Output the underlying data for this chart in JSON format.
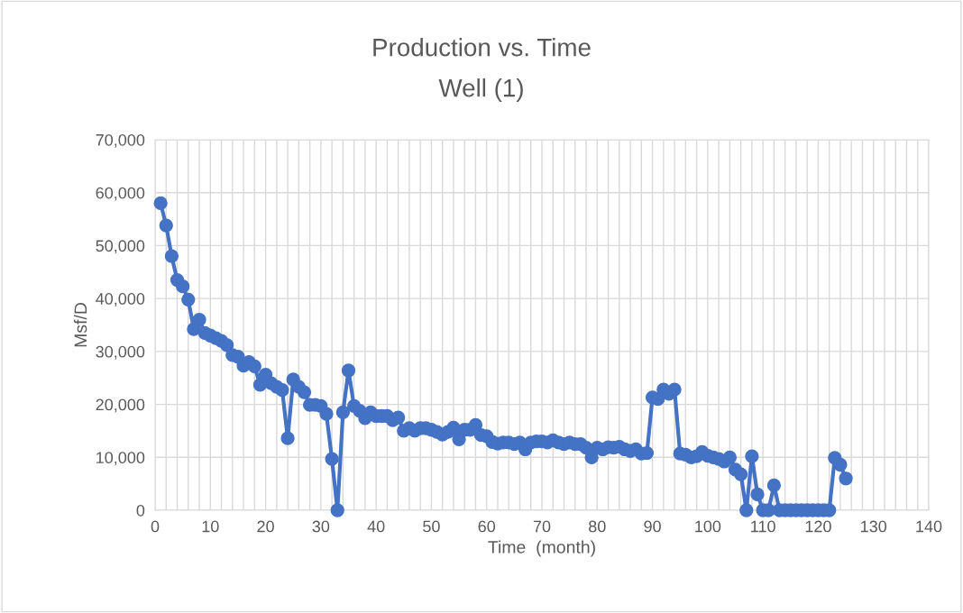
{
  "chart_data": {
    "type": "line",
    "title": "Production vs. Time",
    "subtitle": "Well (1)",
    "xlabel": "Time  (month)",
    "ylabel": "Msf/D",
    "x": [
      1,
      2,
      3,
      4,
      5,
      6,
      7,
      8,
      9,
      10,
      11,
      12,
      13,
      14,
      15,
      16,
      17,
      18,
      19,
      20,
      21,
      22,
      23,
      24,
      25,
      26,
      27,
      28,
      29,
      30,
      31,
      32,
      33,
      34,
      35,
      36,
      37,
      38,
      39,
      40,
      41,
      42,
      43,
      44,
      45,
      46,
      47,
      48,
      49,
      50,
      51,
      52,
      53,
      54,
      55,
      56,
      57,
      58,
      59,
      60,
      61,
      62,
      63,
      64,
      65,
      66,
      67,
      68,
      69,
      70,
      71,
      72,
      73,
      74,
      75,
      76,
      77,
      78,
      79,
      80,
      81,
      82,
      83,
      84,
      85,
      86,
      87,
      88,
      89,
      90,
      91,
      92,
      93,
      94,
      95,
      96,
      97,
      98,
      99,
      100,
      101,
      102,
      103,
      104,
      105,
      106,
      107,
      108,
      109,
      110,
      111,
      112,
      113,
      114,
      115,
      116,
      117,
      118,
      119,
      120,
      121,
      122,
      123,
      124,
      125
    ],
    "series": [
      {
        "color": "#4472c4",
        "values": [
          58000,
          53800,
          48000,
          43500,
          42300,
          39800,
          34200,
          36000,
          33500,
          33000,
          32500,
          32000,
          31200,
          29300,
          29000,
          27300,
          28000,
          27200,
          23700,
          25600,
          24000,
          23300,
          22700,
          13600,
          24700,
          23300,
          22300,
          19900,
          19900,
          19700,
          18200,
          9700,
          0,
          18500,
          26400,
          19700,
          18800,
          17400,
          18500,
          17800,
          17800,
          17800,
          17000,
          17500,
          15000,
          15500,
          15000,
          15500,
          15500,
          15200,
          14800,
          14300,
          14800,
          15600,
          13400,
          15200,
          15200,
          16100,
          14200,
          14000,
          12900,
          12600,
          12800,
          12800,
          12500,
          12800,
          11500,
          12800,
          13000,
          13000,
          12800,
          13200,
          12800,
          12500,
          12800,
          12500,
          12500,
          11800,
          10000,
          11800,
          11500,
          11900,
          11800,
          12000,
          11500,
          11200,
          11500,
          10700,
          10800,
          21300,
          21000,
          22800,
          22000,
          22800,
          10700,
          10500,
          10000,
          10200,
          11000,
          10300,
          10000,
          9700,
          9200,
          10000,
          7700,
          6800,
          0,
          10200,
          3000,
          0,
          0,
          4700,
          0,
          0,
          0,
          0,
          0,
          0,
          0,
          0,
          0,
          0,
          9900,
          8600,
          6000
        ]
      }
    ],
    "xlim": [
      0,
      140
    ],
    "xticks": [
      0,
      {
        "value": 2,
        "label": null
      },
      {
        "value": 4,
        "label": null
      },
      {
        "value": 6,
        "label": null
      },
      {
        "value": 8,
        "label": null
      },
      10,
      {
        "value": 12,
        "label": null
      },
      {
        "value": 14,
        "label": null
      },
      {
        "value": 16,
        "label": null
      },
      {
        "value": 18,
        "label": null
      },
      20,
      {
        "value": 22,
        "label": null
      },
      {
        "value": 24,
        "label": null
      },
      {
        "value": 26,
        "label": null
      },
      {
        "value": 28,
        "label": null
      },
      30,
      {
        "value": 32,
        "label": null
      },
      {
        "value": 34,
        "label": null
      },
      {
        "value": 36,
        "label": null
      },
      {
        "value": 38,
        "label": null
      },
      40,
      {
        "value": 42,
        "label": null
      },
      {
        "value": 44,
        "label": null
      },
      {
        "value": 46,
        "label": null
      },
      {
        "value": 48,
        "label": null
      },
      50,
      {
        "value": 52,
        "label": null
      },
      {
        "value": 54,
        "label": null
      },
      {
        "value": 56,
        "label": null
      },
      {
        "value": 58,
        "label": null
      },
      60,
      {
        "value": 62,
        "label": null
      },
      {
        "value": 64,
        "label": null
      },
      {
        "value": 66,
        "label": null
      },
      {
        "value": 68,
        "label": null
      },
      70,
      {
        "value": 72,
        "label": null
      },
      {
        "value": 74,
        "label": null
      },
      {
        "value": 76,
        "label": null
      },
      {
        "value": 78,
        "label": null
      },
      80,
      {
        "value": 82,
        "label": null
      },
      {
        "value": 84,
        "label": null
      },
      {
        "value": 86,
        "label": null
      },
      {
        "value": 88,
        "label": null
      },
      90,
      {
        "value": 92,
        "label": null
      },
      {
        "value": 94,
        "label": null
      },
      {
        "value": 96,
        "label": null
      },
      {
        "value": 98,
        "label": null
      },
      100,
      {
        "value": 102,
        "label": null
      },
      {
        "value": 104,
        "label": null
      },
      {
        "value": 106,
        "label": null
      },
      {
        "value": 108,
        "label": null
      },
      110,
      {
        "value": 112,
        "label": null
      },
      {
        "value": 114,
        "label": null
      },
      {
        "value": 116,
        "label": null
      },
      {
        "value": 118,
        "label": null
      },
      120,
      {
        "value": 122,
        "label": null
      },
      {
        "value": 124,
        "label": null
      },
      {
        "value": 126,
        "label": null
      },
      {
        "value": 128,
        "label": null
      },
      130,
      {
        "value": 132,
        "label": null
      },
      {
        "value": 134,
        "label": null
      },
      {
        "value": 136,
        "label": null
      },
      {
        "value": 138,
        "label": null
      },
      140
    ],
    "ylim": [
      0,
      70000
    ],
    "yticks": [
      {
        "value": 0,
        "label": "0"
      },
      {
        "value": 10000,
        "label": "10,000"
      },
      {
        "value": 20000,
        "label": "20,000"
      },
      {
        "value": 30000,
        "label": "30,000"
      },
      {
        "value": 40000,
        "label": "40,000"
      },
      {
        "value": 50000,
        "label": "50,000"
      },
      {
        "value": 60000,
        "label": "60,000"
      },
      {
        "value": 70000,
        "label": "70,000"
      }
    ],
    "grid": true,
    "legend": false,
    "marker": "circle",
    "line_style": "solid"
  }
}
